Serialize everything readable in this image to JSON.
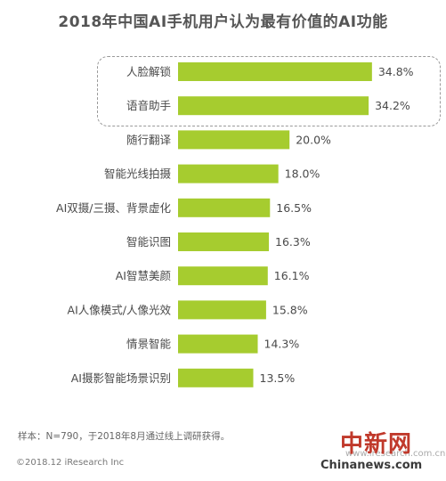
{
  "chart_data": {
    "type": "bar",
    "orientation": "horizontal",
    "title": "2018年中国AI手机用户认为最有价值的AI功能",
    "categories": [
      "人脸解锁",
      "语音助手",
      "随行翻译",
      "智能光线拍摄",
      "AI双摄/三摄、背景虚化",
      "智能识图",
      "AI智慧美颜",
      "AI人像模式/人像光效",
      "情景智能",
      "AI摄影智能场景识别"
    ],
    "values": [
      34.8,
      34.2,
      20.0,
      18.0,
      16.5,
      16.3,
      16.1,
      15.8,
      14.3,
      13.5
    ],
    "value_labels": [
      "34.8%",
      "34.2%",
      "20.0%",
      "18.0%",
      "16.5%",
      "16.3%",
      "16.1%",
      "15.8%",
      "14.3%",
      "13.5%"
    ],
    "unit": "%",
    "xlim": [
      0,
      40
    ],
    "grid": false,
    "highlighted_categories": [
      "人脸解锁",
      "语音助手"
    ],
    "bar_color": "#a6cc2f"
  },
  "footnote": "样本：N=790，于2018年8月通过线上调研获得。",
  "copyright": "©2018.12 iResearch Inc",
  "watermark": {
    "cn": "中新网",
    "en": "Chinanews.com",
    "url": "www.iresearch.com.cn"
  }
}
